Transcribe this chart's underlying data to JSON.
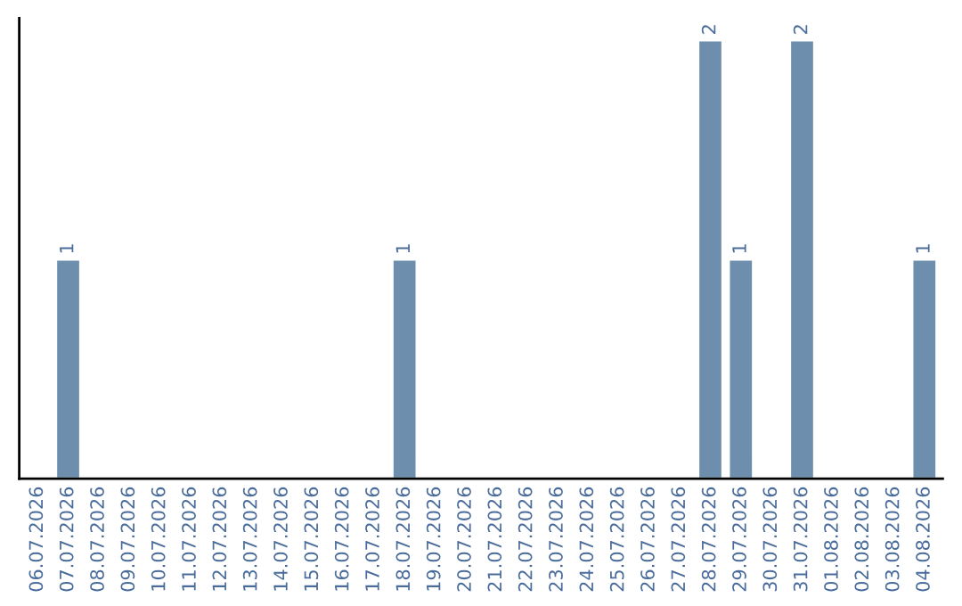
{
  "chart_data": {
    "type": "bar",
    "categories": [
      "06.07.2026",
      "07.07.2026",
      "08.07.2026",
      "09.07.2026",
      "10.07.2026",
      "11.07.2026",
      "12.07.2026",
      "13.07.2026",
      "14.07.2026",
      "15.07.2026",
      "16.07.2026",
      "17.07.2026",
      "18.07.2026",
      "19.07.2026",
      "20.07.2026",
      "21.07.2026",
      "22.07.2026",
      "23.07.2026",
      "24.07.2026",
      "25.07.2026",
      "26.07.2026",
      "27.07.2026",
      "28.07.2026",
      "29.07.2026",
      "30.07.2026",
      "31.07.2026",
      "01.08.2026",
      "02.08.2026",
      "03.08.2026",
      "04.08.2026"
    ],
    "values": [
      null,
      1,
      null,
      null,
      null,
      null,
      null,
      null,
      null,
      null,
      null,
      null,
      1,
      null,
      null,
      null,
      null,
      null,
      null,
      null,
      null,
      null,
      2,
      1,
      null,
      2,
      null,
      null,
      null,
      1
    ],
    "value_labels": [
      null,
      "1",
      null,
      null,
      null,
      null,
      null,
      null,
      null,
      null,
      null,
      null,
      "1",
      null,
      null,
      null,
      null,
      null,
      null,
      null,
      null,
      null,
      "2",
      "1",
      null,
      "2",
      null,
      null,
      null,
      "1"
    ],
    "color": "#6d8fad",
    "grid": false,
    "legend": false
  }
}
